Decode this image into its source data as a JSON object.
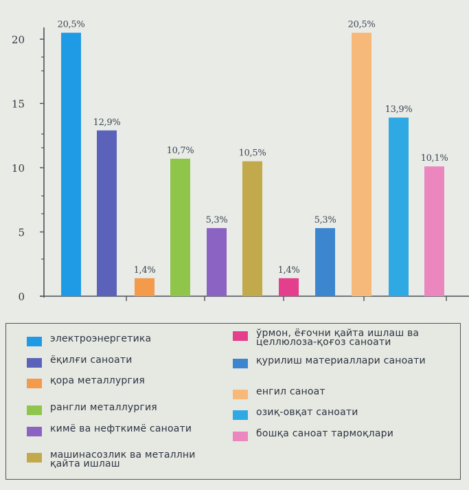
{
  "chart_data": {
    "type": "bar",
    "y_axis": {
      "min": 0,
      "max": 20,
      "ticks": [
        0,
        5,
        10,
        15,
        20
      ]
    },
    "grid": false,
    "bars": [
      {
        "name": "электроэнергетика",
        "value": 20.5,
        "label": "20,5%",
        "color": "#1f9be6"
      },
      {
        "name": "ёқилғи саноати",
        "value": 12.9,
        "label": "12,9%",
        "color": "#5a63b9"
      },
      {
        "name": "қора металлургия",
        "value": 1.4,
        "label": "1,4%",
        "color": "#f39a4b"
      },
      {
        "name": "рангли металлургия",
        "value": 10.7,
        "label": "10,7%",
        "color": "#8fc54a"
      },
      {
        "name": "кимё ва нефткимё саноати",
        "value": 5.3,
        "label": "5,3%",
        "color": "#8b63c2"
      },
      {
        "name": "машинасозлик ва металлни қайта ишлаш",
        "value": 10.5,
        "label": "10,5%",
        "color": "#c2a94c"
      },
      {
        "name": "ўрмон, ёғочни қайта ишлаш ва целлюлоза-қоғоз саноати",
        "value": 1.4,
        "label": "1,4%",
        "color": "#e43f8c"
      },
      {
        "name": "қурилиш материаллари саноати",
        "value": 5.3,
        "label": "5,3%",
        "color": "#3c86cf"
      },
      {
        "name": "енгил саноат",
        "value": 20.5,
        "label": "20,5%",
        "color": "#f6b97a"
      },
      {
        "name": "озиқ-овқат саноати",
        "value": 13.9,
        "label": "13,9%",
        "color": "#2fa9e3"
      },
      {
        "name": "бошқа саноат тармоқлари",
        "value": 10.1,
        "label": "10,1%",
        "color": "#ec86bf"
      }
    ],
    "legend": {
      "position": "bottom",
      "left": [
        {
          "text": "электроэнергетика",
          "color": "#1f9be6"
        },
        {
          "text": "ёқилғи саноати",
          "color": "#5a63b9"
        },
        {
          "text": "қора металлургия",
          "color": "#f39a4b"
        },
        {
          "text": "рангли металлургия",
          "color": "#8fc54a"
        },
        {
          "text": "кимё ва нефткимё саноати",
          "color": "#8b63c2"
        },
        {
          "text": "машинасозлик ва металлни қайта ишлаш",
          "color": "#c2a94c"
        }
      ],
      "right": [
        {
          "text": "ўрмон, ёғочни қайта ишлаш ва целлюлоза-қоғоз саноати",
          "color": "#e43f8c"
        },
        {
          "text": "қурилиш материаллари саноати",
          "color": "#3c86cf"
        },
        {
          "text": "енгил саноат",
          "color": "#f6b97a"
        },
        {
          "text": "озиқ-овқат саноати",
          "color": "#2fa9e3"
        },
        {
          "text": "бошқа саноат тармоқлари",
          "color": "#ec86bf"
        }
      ]
    }
  }
}
